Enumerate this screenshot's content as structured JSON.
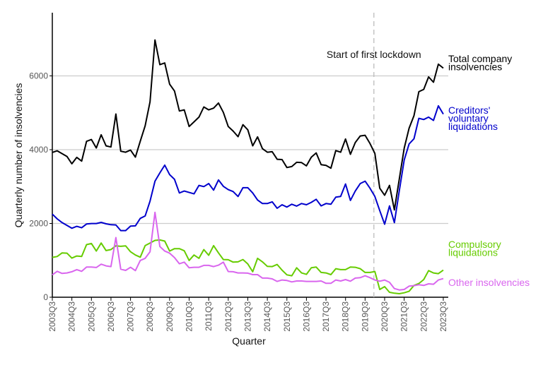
{
  "chart_data": {
    "type": "line",
    "title": "",
    "xlabel": "Quarter",
    "ylabel": "Quarterly number of insolvencies",
    "ylim": [
      0,
      7700
    ],
    "yticks": [
      0,
      2000,
      4000,
      6000
    ],
    "grid": "horizontal",
    "x_tick_labels": [
      "2003Q3",
      "2004Q3",
      "2005Q3",
      "2006Q3",
      "2007Q3",
      "2008Q3",
      "2009Q3",
      "2010Q3",
      "2011Q3",
      "2012Q3",
      "2013Q3",
      "2014Q3",
      "2015Q3",
      "2016Q3",
      "2017Q3",
      "2018Q3",
      "2019Q3",
      "2020Q3",
      "2021Q3",
      "2022Q3",
      "2023Q3"
    ],
    "x_start": "2003Q3",
    "x_end": "2023Q3",
    "annotation": {
      "text": "Start of first lockdown",
      "quarter": "2020Q1"
    },
    "series": [
      {
        "name": "Total company insolvencies",
        "label_lines": [
          "Total company",
          "insolvencies"
        ],
        "color": "#000000",
        "values": [
          3925,
          3970,
          3893,
          3816,
          3618,
          3791,
          3689,
          4225,
          4276,
          4046,
          4404,
          4104,
          4072,
          4966,
          3957,
          3931,
          3989,
          3797,
          4231,
          4646,
          5297,
          6975,
          6305,
          6350,
          5776,
          5591,
          5048,
          5080,
          4627,
          4755,
          4882,
          5157,
          5080,
          5125,
          5265,
          5010,
          4627,
          4506,
          4353,
          4678,
          4538,
          4104,
          4346,
          4027,
          3931,
          3944,
          3740,
          3733,
          3516,
          3542,
          3657,
          3650,
          3561,
          3797,
          3912,
          3593,
          3574,
          3497,
          3976,
          3931,
          4289,
          3874,
          4193,
          4372,
          4391,
          4167,
          3899,
          2955,
          2763,
          3031,
          2367,
          3210,
          4040,
          4582,
          4920,
          5571,
          5635,
          5974,
          5827,
          6318,
          6210
        ]
      },
      {
        "name": "Creditors' voluntary liquidations",
        "label_lines": [
          "Creditors'",
          "voluntary",
          "liquidations"
        ],
        "color": "#0000cc",
        "values": [
          2253,
          2125,
          2023,
          1946,
          1870,
          1921,
          1883,
          1985,
          1998,
          1998,
          2029,
          1991,
          1966,
          1959,
          1806,
          1806,
          1927,
          1934,
          2138,
          2202,
          2604,
          3146,
          3370,
          3580,
          3325,
          3197,
          2827,
          2878,
          2840,
          2802,
          3031,
          2999,
          3082,
          2904,
          3178,
          3006,
          2917,
          2866,
          2731,
          2968,
          2968,
          2827,
          2636,
          2540,
          2540,
          2585,
          2412,
          2508,
          2444,
          2521,
          2470,
          2540,
          2508,
          2572,
          2655,
          2476,
          2540,
          2521,
          2712,
          2731,
          3070,
          2623,
          2878,
          3082,
          3146,
          2955,
          2731,
          2349,
          1978,
          2476,
          2023,
          2891,
          3721,
          4155,
          4295,
          4850,
          4818,
          4882,
          4793,
          5189,
          4965
        ]
      },
      {
        "name": "Compulsory liquidations",
        "label_lines": [
          "Compulsory",
          "liquidations"
        ],
        "color": "#66cc00",
        "values": [
          1080,
          1105,
          1201,
          1195,
          1061,
          1118,
          1105,
          1425,
          1457,
          1252,
          1470,
          1265,
          1291,
          1393,
          1380,
          1393,
          1233,
          1144,
          1086,
          1399,
          1470,
          1540,
          1553,
          1521,
          1252,
          1316,
          1316,
          1259,
          997,
          1144,
          1054,
          1291,
          1137,
          1399,
          1201,
          1022,
          1016,
          952,
          958,
          1022,
          901,
          690,
          1054,
          958,
          837,
          831,
          888,
          735,
          607,
          581,
          799,
          658,
          620,
          799,
          818,
          671,
          658,
          613,
          773,
          748,
          748,
          818,
          811,
          773,
          671,
          671,
          697,
          211,
          288,
          134,
          109,
          96,
          121,
          160,
          320,
          371,
          479,
          722,
          658,
          639,
          735
        ]
      },
      {
        "name": "Other insolvencies",
        "label_lines": [
          "Other insolvencies"
        ],
        "color": "#d966ee",
        "values": [
          607,
          703,
          645,
          658,
          690,
          748,
          703,
          818,
          818,
          805,
          895,
          850,
          831,
          1617,
          760,
          728,
          811,
          722,
          997,
          1054,
          1233,
          2300,
          1374,
          1252,
          1195,
          1074,
          907,
          952,
          799,
          811,
          811,
          863,
          863,
          831,
          869,
          952,
          697,
          690,
          658,
          658,
          652,
          613,
          613,
          518,
          518,
          498,
          428,
          467,
          454,
          415,
          441,
          441,
          428,
          428,
          428,
          441,
          377,
          377,
          467,
          441,
          479,
          435,
          518,
          530,
          582,
          530,
          467,
          435,
          467,
          403,
          236,
          198,
          211,
          300,
          313,
          339,
          320,
          364,
          352,
          467,
          505
        ]
      }
    ]
  }
}
